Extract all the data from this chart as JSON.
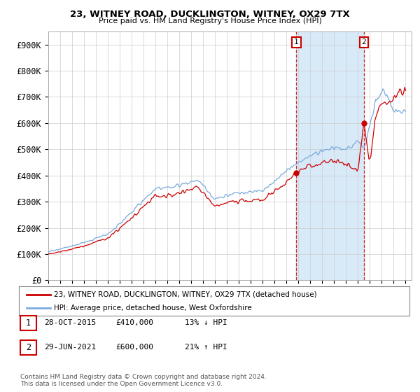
{
  "title1": "23, WITNEY ROAD, DUCKLINGTON, WITNEY, OX29 7TX",
  "title2": "Price paid vs. HM Land Registry's House Price Index (HPI)",
  "ylim": [
    0,
    950000
  ],
  "yticks": [
    0,
    100000,
    200000,
    300000,
    400000,
    500000,
    600000,
    700000,
    800000,
    900000
  ],
  "ytick_labels": [
    "£0",
    "£100K",
    "£200K",
    "£300K",
    "£400K",
    "£500K",
    "£600K",
    "£700K",
    "£800K",
    "£900K"
  ],
  "sale1_year": 2015.83,
  "sale1_price": 410000,
  "sale1_label": "1",
  "sale1_date": "28-OCT-2015",
  "sale1_hpi_pct": "13% ↓ HPI",
  "sale2_year": 2021.5,
  "sale2_price": 600000,
  "sale2_label": "2",
  "sale2_date": "29-JUN-2021",
  "sale2_hpi_pct": "21% ↑ HPI",
  "hpi_color": "#7aaadd",
  "property_color": "#cc0000",
  "shading_color": "#d8eaf8",
  "legend_label1": "23, WITNEY ROAD, DUCKLINGTON, WITNEY, OX29 7TX (detached house)",
  "legend_label2": "HPI: Average price, detached house, West Oxfordshire",
  "footer": "Contains HM Land Registry data © Crown copyright and database right 2024.\nThis data is licensed under the Open Government Licence v3.0.",
  "background_color": "#ffffff",
  "grid_color": "#cccccc",
  "label_box_color": "#cc0000"
}
